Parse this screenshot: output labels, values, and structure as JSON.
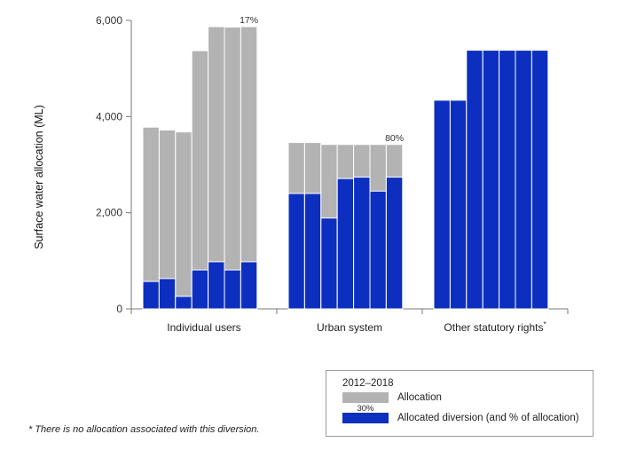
{
  "chart_data": {
    "type": "bar",
    "subtype": "overlaid stacked bars by year within groups",
    "ylabel": "Surface water allocation (ML)",
    "ylim": [
      0,
      6000
    ],
    "yticks": [
      0,
      2000,
      4000,
      6000
    ],
    "ytick_labels": [
      "0",
      "2,000",
      "4,000",
      "6,000"
    ],
    "period": "2012–2018",
    "groups": [
      {
        "label": "Individual users",
        "allocation": [
          3780,
          3720,
          3680,
          5370,
          5870,
          5860,
          5870
        ],
        "diversion": [
          570,
          630,
          260,
          810,
          980,
          810,
          980
        ],
        "end_label": "17%"
      },
      {
        "label": "Urban system",
        "allocation": [
          3460,
          3460,
          3420,
          3420,
          3420,
          3420,
          3420
        ],
        "diversion": [
          2400,
          2400,
          1890,
          2710,
          2740,
          2450,
          2740
        ],
        "end_label": "80%"
      },
      {
        "label": "Other statutory rights",
        "label_suffix": "*",
        "allocation": [],
        "diversion": [
          4340,
          4340,
          5380,
          5380,
          5380,
          5380,
          5380
        ],
        "end_label": ""
      }
    ],
    "series": [
      {
        "name": "Allocation",
        "color": "#b3b3b3"
      },
      {
        "name": "Allocated diversion (and % of allocation)",
        "color": "#0d2fbf"
      }
    ],
    "legend": {
      "title": "2012–2018",
      "allocation_label": "Allocation",
      "diversion_label": "Allocated diversion (and % of allocation)",
      "swatch_pct": "30%",
      "placement": "bottom-right"
    },
    "footnote": "* There is no allocation associated with this diversion."
  }
}
